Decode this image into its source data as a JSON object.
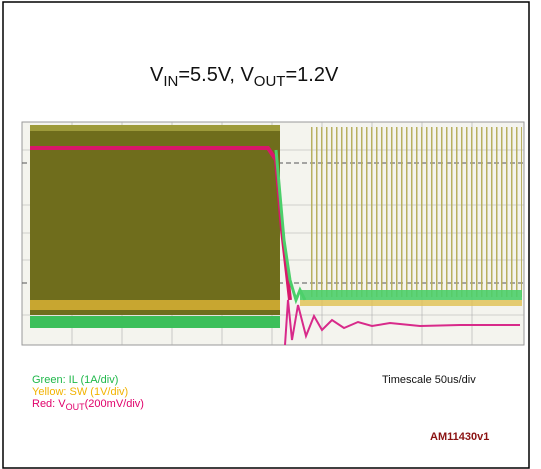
{
  "title": {
    "v1": "V",
    "sub1": "IN",
    "mid": "=5.5V, V",
    "sub2": "OUT",
    "end": "=1.2V"
  },
  "legend": [
    {
      "text": "Green: IL (1A/div)"
    },
    {
      "text": "Yellow: SW (1V/div)"
    },
    {
      "pre": "Red: V",
      "sub": "OUT",
      "post": "(200mV/div)"
    }
  ],
  "timescale": "Timescale 50us/div",
  "code": "AM11430v1"
}
